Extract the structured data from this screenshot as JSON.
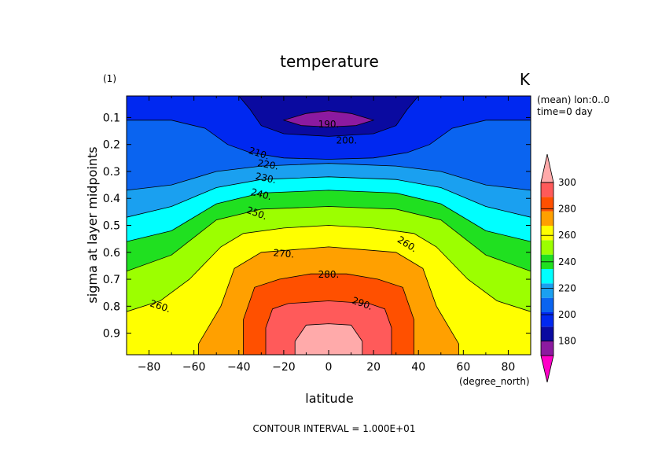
{
  "chart_data": {
    "type": "contour",
    "panel_label": "(1)",
    "title": "temperature",
    "units": "K",
    "meta": [
      "(mean) lon:0..0",
      "time=0 day"
    ],
    "xlabel": "latitude",
    "xunit": "(degree_north)",
    "ylabel": "sigma at layer midpoints",
    "xlim": [
      -90,
      90
    ],
    "ylim": [
      0.02,
      0.98
    ],
    "y_inverted": true,
    "x_ticks": [
      -80,
      -60,
      -40,
      -20,
      0,
      20,
      40,
      60,
      80
    ],
    "x_tick_labels": [
      "−80",
      "−60",
      "−40",
      "−20",
      "0",
      "20",
      "40",
      "60",
      "80"
    ],
    "y_ticks": [
      0.1,
      0.2,
      0.3,
      0.4,
      0.5,
      0.6,
      0.7,
      0.8,
      0.9
    ],
    "y_tick_labels": [
      "0.1",
      "0.2",
      "0.3",
      "0.4",
      "0.5",
      "0.6",
      "0.7",
      "0.8",
      "0.9"
    ],
    "contour_interval_text": "CONTOUR INTERVAL = 1.000E+01",
    "colorbar": {
      "tick_values": [
        180,
        200,
        220,
        240,
        260,
        280,
        300
      ],
      "tick_labels": [
        "180",
        "200",
        "220",
        "240",
        "260",
        "280",
        "300"
      ],
      "bounds": [
        170,
        180,
        190,
        200,
        210,
        220,
        230,
        240,
        250,
        260,
        270,
        280,
        290,
        300
      ],
      "colors": [
        "#ff00c8",
        "#8c1aa0",
        "#0a0aa0",
        "#0028f0",
        "#0a64f0",
        "#1aa0f0",
        "#00ffff",
        "#20e020",
        "#9cff00",
        "#ffff00",
        "#ffa000",
        "#ff5000",
        "#ff5a5a",
        "#ffaaaa"
      ]
    },
    "levels": [
      {
        "value": 200,
        "label": "200.",
        "boundary": [
          [
            -40,
            0.02
          ],
          [
            -35,
            0.07
          ],
          [
            -30,
            0.13
          ],
          [
            -20,
            0.16
          ],
          [
            0,
            0.17
          ],
          [
            20,
            0.16
          ],
          [
            30,
            0.13
          ],
          [
            35,
            0.07
          ],
          [
            40,
            0.02
          ]
        ]
      },
      {
        "value": 210,
        "label": "210.",
        "boundary": [
          [
            -90,
            0.11
          ],
          [
            -70,
            0.11
          ],
          [
            -55,
            0.14
          ],
          [
            -45,
            0.2
          ],
          [
            -35,
            0.23
          ],
          [
            -20,
            0.25
          ],
          [
            0,
            0.255
          ],
          [
            20,
            0.25
          ],
          [
            35,
            0.23
          ],
          [
            45,
            0.2
          ],
          [
            55,
            0.14
          ],
          [
            70,
            0.11
          ],
          [
            90,
            0.11
          ]
        ]
      },
      {
        "value": 220,
        "label": "220.",
        "boundary": [
          [
            -90,
            0.37
          ],
          [
            -70,
            0.35
          ],
          [
            -50,
            0.3
          ],
          [
            -30,
            0.28
          ],
          [
            0,
            0.27
          ],
          [
            30,
            0.28
          ],
          [
            50,
            0.3
          ],
          [
            70,
            0.35
          ],
          [
            90,
            0.37
          ]
        ]
      },
      {
        "value": 230,
        "label": "230.",
        "boundary": [
          [
            -90,
            0.47
          ],
          [
            -70,
            0.43
          ],
          [
            -50,
            0.36
          ],
          [
            -30,
            0.33
          ],
          [
            0,
            0.32
          ],
          [
            30,
            0.33
          ],
          [
            50,
            0.36
          ],
          [
            70,
            0.43
          ],
          [
            90,
            0.47
          ]
        ]
      },
      {
        "value": 240,
        "label": "240.",
        "boundary": [
          [
            -90,
            0.56
          ],
          [
            -70,
            0.52
          ],
          [
            -50,
            0.42
          ],
          [
            -30,
            0.38
          ],
          [
            0,
            0.37
          ],
          [
            30,
            0.38
          ],
          [
            50,
            0.42
          ],
          [
            70,
            0.52
          ],
          [
            90,
            0.56
          ]
        ]
      },
      {
        "value": 250,
        "label": "250.",
        "boundary": [
          [
            -90,
            0.67
          ],
          [
            -70,
            0.61
          ],
          [
            -50,
            0.48
          ],
          [
            -30,
            0.44
          ],
          [
            0,
            0.43
          ],
          [
            30,
            0.44
          ],
          [
            50,
            0.48
          ],
          [
            70,
            0.61
          ],
          [
            90,
            0.67
          ]
        ]
      },
      {
        "value": 260,
        "label": "260.",
        "boundary": [
          [
            -90,
            0.82
          ],
          [
            -75,
            0.78
          ],
          [
            -62,
            0.7
          ],
          [
            -48,
            0.58
          ],
          [
            -38,
            0.53
          ],
          [
            -20,
            0.51
          ],
          [
            0,
            0.5
          ],
          [
            20,
            0.51
          ],
          [
            38,
            0.53
          ],
          [
            48,
            0.58
          ],
          [
            62,
            0.7
          ],
          [
            75,
            0.78
          ],
          [
            90,
            0.82
          ]
        ]
      },
      {
        "value": 270,
        "label": "270.",
        "boundary": [
          [
            -58,
            0.98
          ],
          [
            -58,
            0.94
          ],
          [
            -48,
            0.8
          ],
          [
            -42,
            0.66
          ],
          [
            -30,
            0.6
          ],
          [
            -15,
            0.59
          ],
          [
            0,
            0.58
          ],
          [
            15,
            0.59
          ],
          [
            30,
            0.6
          ],
          [
            42,
            0.66
          ],
          [
            48,
            0.8
          ],
          [
            58,
            0.94
          ],
          [
            58,
            0.98
          ]
        ]
      },
      {
        "value": 280,
        "label": "280.",
        "boundary": [
          [
            -38,
            0.98
          ],
          [
            -38,
            0.85
          ],
          [
            -33,
            0.73
          ],
          [
            -22,
            0.7
          ],
          [
            -8,
            0.68
          ],
          [
            8,
            0.68
          ],
          [
            22,
            0.7
          ],
          [
            33,
            0.73
          ],
          [
            38,
            0.85
          ],
          [
            38,
            0.98
          ]
        ]
      },
      {
        "value": 290,
        "label": "290.",
        "boundary": [
          [
            -28,
            0.98
          ],
          [
            -28,
            0.88
          ],
          [
            -25,
            0.81
          ],
          [
            -18,
            0.79
          ],
          [
            0,
            0.78
          ],
          [
            18,
            0.79
          ],
          [
            25,
            0.81
          ],
          [
            28,
            0.88
          ],
          [
            28,
            0.98
          ]
        ]
      },
      {
        "value": 300,
        "label": "",
        "boundary": [
          [
            -15,
            0.98
          ],
          [
            -15,
            0.93
          ],
          [
            -10,
            0.87
          ],
          [
            0,
            0.865
          ],
          [
            10,
            0.87
          ],
          [
            15,
            0.93
          ],
          [
            15,
            0.98
          ]
        ]
      }
    ],
    "closed_levels": [
      {
        "value": 190,
        "label": "190.",
        "boundary": [
          [
            -20,
            0.11
          ],
          [
            -10,
            0.085
          ],
          [
            0,
            0.075
          ],
          [
            10,
            0.085
          ],
          [
            20,
            0.11
          ],
          [
            12,
            0.13
          ],
          [
            0,
            0.135
          ],
          [
            -12,
            0.13
          ]
        ]
      }
    ],
    "contour_labels": [
      {
        "text": "190.",
        "x": 0,
        "y": 0.125,
        "rotate": 0
      },
      {
        "text": "200.",
        "x": 8,
        "y": 0.185,
        "rotate": 0
      },
      {
        "text": "210.",
        "x": -31,
        "y": 0.233,
        "rotate": 18
      },
      {
        "text": "220.",
        "x": -27,
        "y": 0.275,
        "rotate": 10
      },
      {
        "text": "230.",
        "x": -28,
        "y": 0.325,
        "rotate": 12
      },
      {
        "text": "240.",
        "x": -30,
        "y": 0.385,
        "rotate": 15
      },
      {
        "text": "250.",
        "x": -32,
        "y": 0.455,
        "rotate": 20
      },
      {
        "text": "260.",
        "x": -75,
        "y": 0.8,
        "rotate": 18
      },
      {
        "text": "260.",
        "x": 35,
        "y": 0.57,
        "rotate": 32
      },
      {
        "text": "270.",
        "x": -20,
        "y": 0.605,
        "rotate": 5
      },
      {
        "text": "280.",
        "x": 0,
        "y": 0.682,
        "rotate": 0
      },
      {
        "text": "290.",
        "x": 15,
        "y": 0.79,
        "rotate": 20
      }
    ],
    "base_color": "#0028f0"
  }
}
